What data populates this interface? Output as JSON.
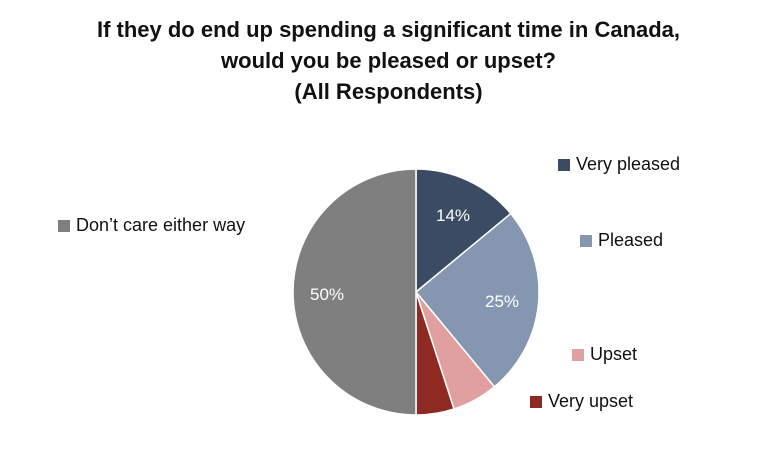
{
  "chart_data": {
    "type": "pie",
    "title_lines": [
      "If they do end up spending a significant time in Canada,",
      "would you be pleased or upset?",
      "(All Respondents)"
    ],
    "slices": [
      {
        "name": "Very pleased",
        "value": 14,
        "label": "14%",
        "color": "#3b4b63"
      },
      {
        "name": "Pleased",
        "value": 25,
        "label": "25%",
        "color": "#8496b0"
      },
      {
        "name": "Upset",
        "value": 6,
        "label": "",
        "color": "#e0a0a0"
      },
      {
        "name": "Very upset",
        "value": 5,
        "label": "",
        "color": "#8f2a22"
      },
      {
        "name": "Don’t care either way",
        "value": 50,
        "label": "50%",
        "color": "#7f7f7f"
      }
    ],
    "legend_position": "around"
  }
}
